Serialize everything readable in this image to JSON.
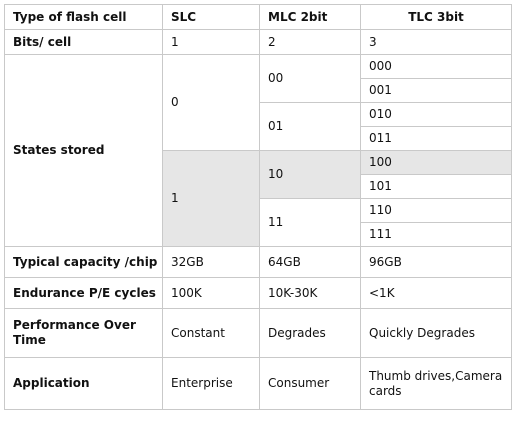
{
  "header": {
    "col1": "Type of flash cell",
    "col2": "SLC",
    "col3": "MLC 2bit",
    "col4": "TLC 3bit"
  },
  "bits": {
    "label": "Bits/ cell",
    "slc": "1",
    "mlc": "2",
    "tlc": "3"
  },
  "states": {
    "label": "States stored",
    "slc": [
      "0",
      "1"
    ],
    "mlc": [
      "00",
      "01",
      "10",
      "11"
    ],
    "tlc": [
      "000",
      "001",
      "010",
      "011",
      "100",
      "101",
      "110",
      "111"
    ]
  },
  "capacity": {
    "label": "Typical capacity /chip",
    "slc": "32GB",
    "mlc": "64GB",
    "tlc": "96GB"
  },
  "endurance": {
    "label": "Endurance P/E cycles",
    "slc": "100K",
    "mlc": "10K-30K",
    "tlc": "<1K"
  },
  "performance": {
    "label": "Performance Over Time",
    "slc": "Constant",
    "mlc": "Degrades",
    "tlc": "Quickly Degrades"
  },
  "application": {
    "label": "Application",
    "slc": "Enterprise",
    "mlc": "Consumer",
    "tlc": "Thumb drives,Camera cards"
  },
  "colors": {
    "border": "#c9c9c9",
    "shade": "#e6e6e6"
  }
}
